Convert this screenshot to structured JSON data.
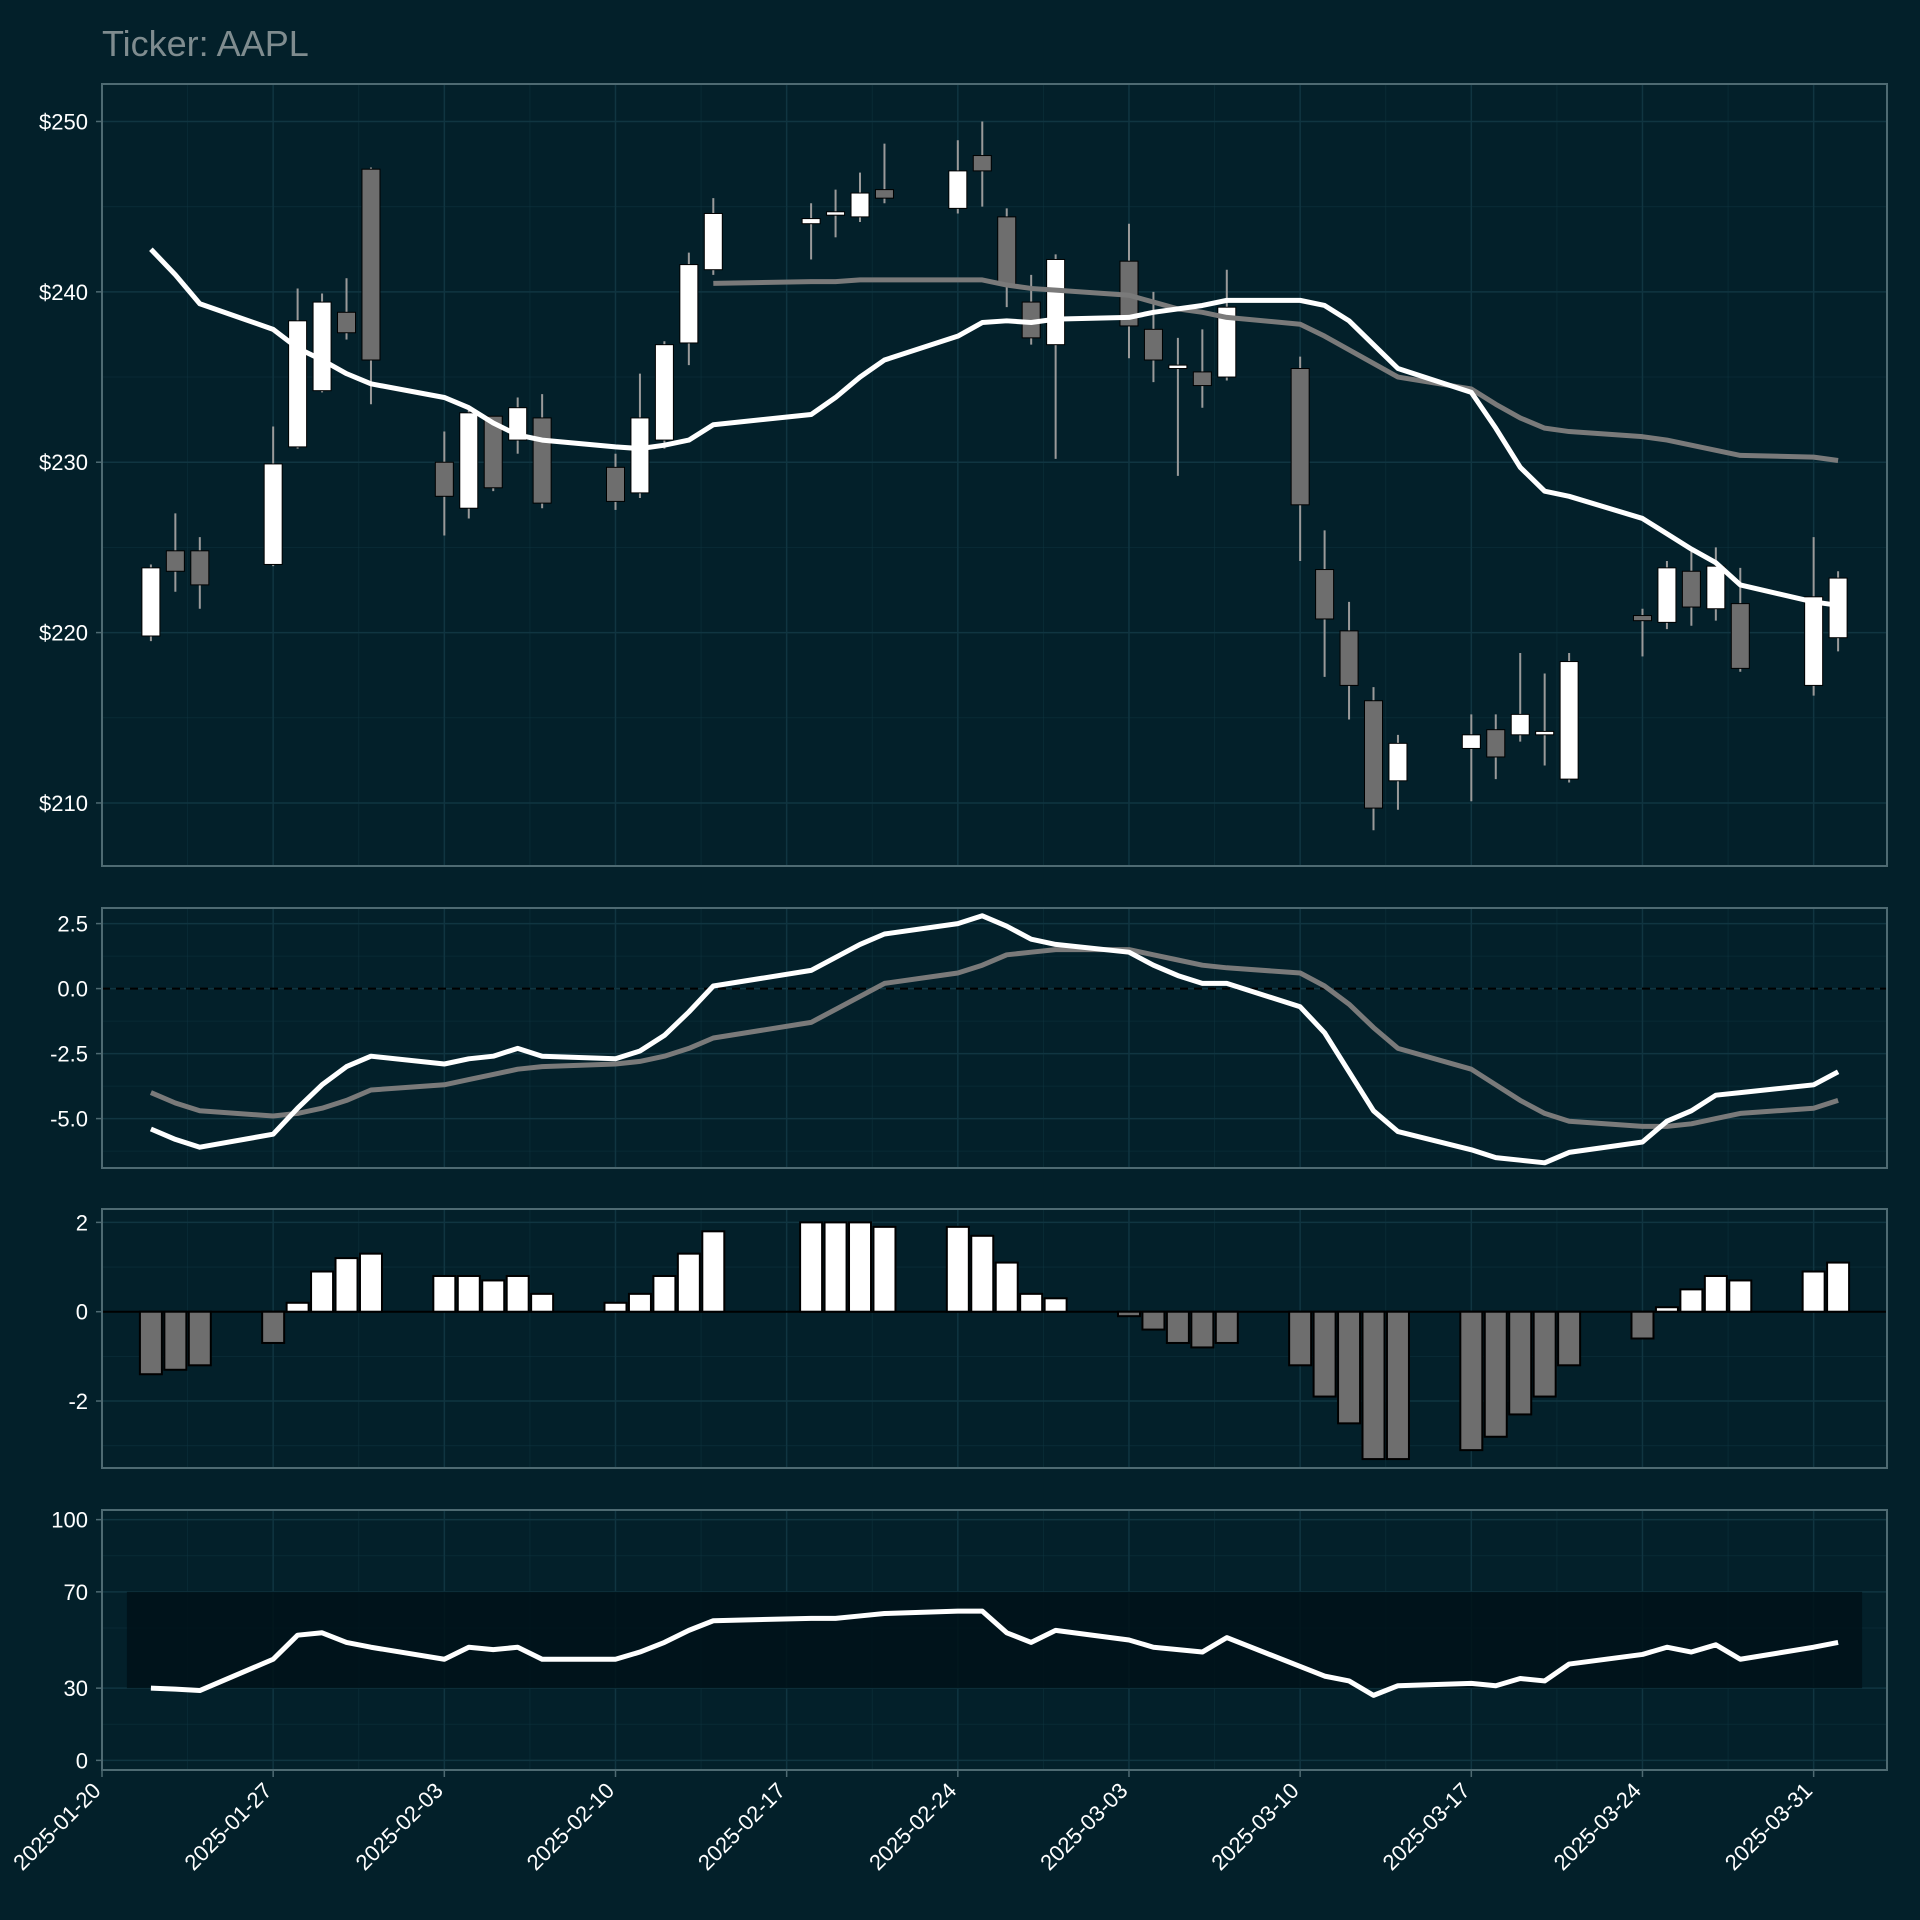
{
  "colors": {
    "background": "#03202a",
    "panel_border": "#4e6a72",
    "grid": "#103541",
    "up": "#ffffff",
    "down": "#6e6e6e",
    "wick": "#9a9a9a",
    "macd_line": "#ffffff",
    "signal_line": "#7a7a7a",
    "rsi_band": "#001219"
  },
  "chart_data": [
    {
      "type": "candlestick",
      "panel": "price",
      "title": "Ticker: AAPL",
      "ylabel": "",
      "ylim": [
        206.3,
        252.2
      ],
      "yticks": [
        210,
        220,
        230,
        240,
        250
      ],
      "ytick_labels": [
        "$210",
        "$220",
        "$230",
        "$240",
        "$250"
      ],
      "grid": true,
      "dates": [
        "2025-01-22",
        "2025-01-23",
        "2025-01-24",
        "2025-01-27",
        "2025-01-28",
        "2025-01-29",
        "2025-01-30",
        "2025-01-31",
        "2025-02-03",
        "2025-02-04",
        "2025-02-05",
        "2025-02-06",
        "2025-02-07",
        "2025-02-10",
        "2025-02-11",
        "2025-02-12",
        "2025-02-13",
        "2025-02-14",
        "2025-02-18",
        "2025-02-19",
        "2025-02-20",
        "2025-02-21",
        "2025-02-24",
        "2025-02-25",
        "2025-02-26",
        "2025-02-27",
        "2025-02-28",
        "2025-03-03",
        "2025-03-04",
        "2025-03-05",
        "2025-03-06",
        "2025-03-07",
        "2025-03-10",
        "2025-03-11",
        "2025-03-12",
        "2025-03-13",
        "2025-03-14",
        "2025-03-17",
        "2025-03-18",
        "2025-03-19",
        "2025-03-20",
        "2025-03-21",
        "2025-03-24",
        "2025-03-25",
        "2025-03-26",
        "2025-03-27",
        "2025-03-28",
        "2025-03-31",
        "2025-04-01"
      ],
      "open": [
        219.8,
        224.8,
        224.8,
        224.0,
        230.9,
        234.2,
        238.8,
        247.2,
        230.0,
        227.3,
        232.7,
        231.3,
        232.6,
        229.7,
        228.2,
        231.3,
        237.0,
        241.3,
        244.0,
        244.5,
        244.4,
        246.0,
        244.9,
        248.0,
        244.4,
        239.4,
        236.9,
        241.8,
        237.8,
        235.5,
        235.3,
        235.0,
        235.5,
        223.7,
        220.1,
        216.0,
        211.3,
        213.2,
        214.3,
        214.0,
        214.0,
        211.4,
        221.0,
        220.6,
        223.6,
        221.4,
        221.7,
        216.9,
        219.7
      ],
      "close": [
        223.8,
        223.6,
        222.8,
        229.9,
        238.3,
        239.4,
        237.6,
        236.0,
        228.0,
        232.9,
        228.5,
        233.2,
        227.6,
        227.7,
        232.6,
        236.9,
        241.6,
        244.6,
        244.3,
        244.7,
        245.8,
        245.5,
        247.1,
        247.1,
        240.4,
        237.3,
        241.9,
        238.0,
        236.0,
        235.7,
        234.5,
        239.1,
        227.5,
        220.8,
        216.9,
        209.7,
        213.5,
        214.0,
        212.7,
        215.2,
        214.2,
        218.3,
        220.7,
        223.8,
        221.5,
        223.9,
        217.9,
        222.1,
        223.2
      ],
      "high": [
        224.0,
        227.0,
        225.6,
        232.1,
        240.2,
        239.9,
        240.8,
        247.3,
        231.8,
        233.1,
        232.7,
        233.8,
        234.0,
        230.5,
        235.2,
        237.1,
        242.3,
        245.5,
        245.2,
        246.0,
        247.0,
        248.7,
        248.9,
        250.0,
        244.9,
        241.0,
        242.2,
        244.0,
        240.0,
        237.3,
        237.8,
        241.3,
        236.2,
        226.0,
        221.8,
        216.8,
        214.0,
        215.2,
        215.2,
        218.8,
        217.6,
        218.8,
        221.4,
        224.2,
        225.0,
        225.0,
        223.8,
        225.6,
        223.6
      ],
      "low": [
        219.5,
        222.4,
        221.4,
        223.9,
        230.8,
        234.1,
        237.2,
        233.4,
        225.7,
        226.7,
        228.3,
        230.5,
        227.3,
        227.2,
        227.9,
        230.8,
        235.7,
        241.0,
        241.9,
        243.2,
        244.1,
        245.2,
        244.6,
        245.0,
        239.1,
        236.9,
        230.2,
        236.1,
        234.7,
        229.2,
        233.2,
        234.8,
        224.2,
        217.4,
        214.9,
        208.4,
        209.6,
        210.1,
        211.4,
        213.6,
        212.2,
        211.2,
        218.6,
        220.2,
        220.4,
        220.7,
        217.7,
        216.3,
        218.9
      ],
      "ma_fast": [
        242.5,
        241.0,
        239.3,
        237.8,
        236.7,
        236.0,
        235.2,
        234.6,
        233.8,
        233.2,
        232.3,
        231.6,
        231.3,
        230.9,
        230.8,
        231.0,
        231.3,
        232.2,
        232.8,
        233.8,
        235.0,
        236.0,
        237.4,
        238.2,
        238.3,
        238.2,
        238.4,
        238.5,
        238.8,
        239.0,
        239.2,
        239.5,
        239.5,
        239.2,
        238.3,
        236.9,
        235.5,
        234.1,
        232.0,
        229.7,
        228.3,
        228.0,
        226.7,
        225.8,
        224.9,
        224.1,
        222.8,
        221.8,
        221.6
      ],
      "ma_slow": [
        null,
        null,
        null,
        null,
        null,
        null,
        null,
        null,
        null,
        null,
        null,
        null,
        null,
        null,
        null,
        null,
        null,
        240.5,
        240.6,
        240.6,
        240.7,
        240.7,
        240.7,
        240.7,
        240.4,
        240.2,
        240.1,
        239.8,
        239.4,
        239.0,
        238.8,
        238.5,
        238.1,
        237.4,
        236.6,
        235.8,
        235.0,
        234.3,
        233.4,
        232.6,
        232.0,
        231.8,
        231.5,
        231.3,
        231.0,
        230.7,
        230.4,
        230.3,
        230.1
      ]
    },
    {
      "type": "line",
      "panel": "macd",
      "ylim": [
        -6.9,
        3.1
      ],
      "yticks": [
        2.5,
        0.0,
        -2.5,
        -5.0
      ],
      "ytick_labels": [
        "2.5",
        "0.0",
        "-2.5",
        "-5.0"
      ],
      "zero_line": true,
      "grid": true,
      "series": [
        {
          "values": [
            -5.4,
            -5.8,
            -6.1,
            -5.6,
            -4.6,
            -3.7,
            -3.0,
            -2.6,
            -2.9,
            -2.7,
            -2.6,
            -2.3,
            -2.6,
            -2.7,
            -2.4,
            -1.8,
            -0.9,
            0.1,
            0.7,
            1.2,
            1.7,
            2.1,
            2.5,
            2.8,
            2.4,
            1.9,
            1.7,
            1.4,
            0.9,
            0.5,
            0.2,
            0.2,
            -0.7,
            -1.7,
            -3.2,
            -4.7,
            -5.5,
            -6.2,
            -6.5,
            -6.6,
            -6.7,
            -6.3,
            -5.9,
            -5.1,
            -4.7,
            -4.1,
            -4.0,
            -3.7,
            -3.2
          ]
        },
        {
          "values": [
            -4.0,
            -4.4,
            -4.7,
            -4.9,
            -4.8,
            -4.6,
            -4.3,
            -3.9,
            -3.7,
            -3.5,
            -3.3,
            -3.1,
            -3.0,
            -2.9,
            -2.8,
            -2.6,
            -2.3,
            -1.9,
            -1.3,
            -0.8,
            -0.3,
            0.2,
            0.6,
            0.9,
            1.3,
            1.4,
            1.5,
            1.5,
            1.3,
            1.1,
            0.9,
            0.8,
            0.6,
            0.1,
            -0.6,
            -1.5,
            -2.3,
            -3.1,
            -3.7,
            -4.3,
            -4.8,
            -5.1,
            -5.3,
            -5.3,
            -5.2,
            -5.0,
            -4.8,
            -4.6,
            -4.3
          ]
        }
      ]
    },
    {
      "type": "bar",
      "panel": "histogram",
      "ylim": [
        -3.5,
        2.3
      ],
      "yticks": [
        2,
        0,
        -2
      ],
      "ytick_labels": [
        "2",
        "0",
        "-2"
      ],
      "grid": true,
      "values": [
        -1.4,
        -1.3,
        -1.2,
        -0.7,
        0.2,
        0.9,
        1.2,
        1.3,
        0.8,
        0.8,
        0.7,
        0.8,
        0.4,
        0.2,
        0.4,
        0.8,
        1.3,
        1.8,
        2.0,
        2.0,
        2.0,
        1.9,
        1.9,
        1.7,
        1.1,
        0.4,
        0.3,
        -0.1,
        -0.4,
        -0.7,
        -0.8,
        -0.7,
        -1.2,
        -1.9,
        -2.5,
        -3.3,
        -3.3,
        -3.1,
        -2.8,
        -2.3,
        -1.9,
        -1.2,
        -0.6,
        0.1,
        0.5,
        0.8,
        0.7,
        0.9,
        1.1
      ]
    },
    {
      "type": "line",
      "panel": "rsi",
      "ylim": [
        -4,
        104
      ],
      "yticks": [
        100,
        70,
        30,
        0
      ],
      "ytick_labels": [
        "100",
        "70",
        "30",
        "0"
      ],
      "band": [
        30,
        70
      ],
      "grid": true,
      "series": [
        {
          "values": [
            30.0,
            29.6,
            29.0,
            42.0,
            52.0,
            53.0,
            49.0,
            47.0,
            42.0,
            47.0,
            46.0,
            47.0,
            42.0,
            42.0,
            45.0,
            49.0,
            54.0,
            58.0,
            59.0,
            59.0,
            60.0,
            61.0,
            62.0,
            62.0,
            53.0,
            49.0,
            54.0,
            50.0,
            47.0,
            46.0,
            45.0,
            51.0,
            39.0,
            35.0,
            33.0,
            27.0,
            31.0,
            32.0,
            31.0,
            34.0,
            33.0,
            40.0,
            44.0,
            47.0,
            45.0,
            48.0,
            42.0,
            47.0,
            49.0
          ]
        }
      ]
    }
  ],
  "x_axis": {
    "tick_labels": [
      "2025-01-20",
      "2025-01-27",
      "2025-02-03",
      "2025-02-10",
      "2025-02-17",
      "2025-02-24",
      "2025-03-03",
      "2025-03-10",
      "2025-03-17",
      "2025-03-24",
      "2025-03-31"
    ]
  }
}
